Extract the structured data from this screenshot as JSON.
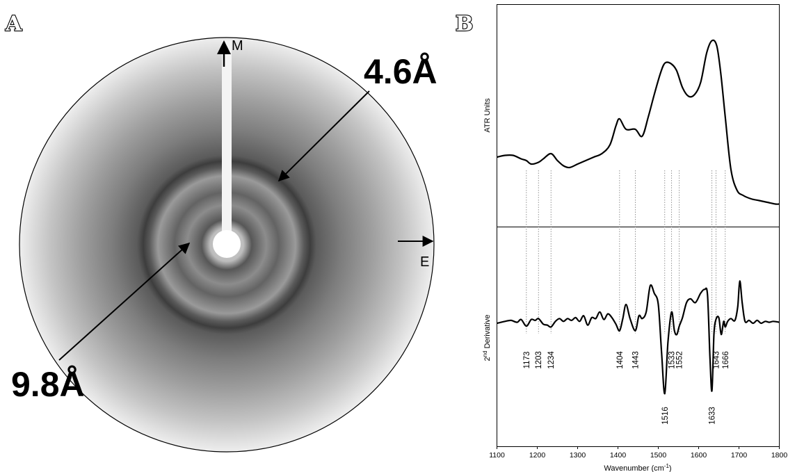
{
  "panel_a": {
    "letter": "A",
    "labels": {
      "top_right": "4.6Å",
      "bottom_left": "9.8Å",
      "meridian": "M",
      "equator": "E"
    }
  },
  "panel_b": {
    "letter": "B",
    "top_ylabel": "ATR Units",
    "bottom_ylabel_main": "2",
    "bottom_ylabel_sup": "nd",
    "bottom_ylabel_rest": " Derivative",
    "xlabel_main": "Wavenumber (cm",
    "xlabel_sup": "-1",
    "xlabel_end": ")"
  },
  "chart_data": {
    "type": "line",
    "xlabel": "Wavenumber (cm-1)",
    "xlim": [
      1100,
      1800
    ],
    "x_ticks": [
      "1100",
      "1200",
      "1300",
      "1400",
      "1500",
      "1600",
      "1700",
      "1800"
    ],
    "peak_markers": [
      "1173",
      "1203",
      "1234",
      "1404",
      "1443",
      "1516",
      "1533",
      "1552",
      "1633",
      "1643",
      "1666"
    ],
    "series": [
      {
        "name": "ATR Units",
        "x": [
          1100,
          1120,
          1140,
          1160,
          1173,
          1185,
          1203,
          1215,
          1234,
          1250,
          1265,
          1280,
          1300,
          1320,
          1340,
          1360,
          1380,
          1395,
          1404,
          1420,
          1443,
          1460,
          1475,
          1490,
          1505,
          1516,
          1530,
          1545,
          1560,
          1575,
          1590,
          1605,
          1620,
          1633,
          1645,
          1655,
          1666,
          1680,
          1695,
          1710,
          1730,
          1750,
          1770,
          1790,
          1800
        ],
        "y": [
          0.32,
          0.33,
          0.33,
          0.31,
          0.3,
          0.28,
          0.29,
          0.31,
          0.34,
          0.3,
          0.27,
          0.26,
          0.28,
          0.3,
          0.32,
          0.34,
          0.39,
          0.5,
          0.54,
          0.48,
          0.48,
          0.44,
          0.55,
          0.68,
          0.8,
          0.86,
          0.86,
          0.82,
          0.72,
          0.67,
          0.68,
          0.75,
          0.92,
          0.99,
          0.96,
          0.8,
          0.55,
          0.25,
          0.13,
          0.1,
          0.08,
          0.07,
          0.06,
          0.05,
          0.05
        ]
      },
      {
        "name": "2nd Derivative",
        "x": [
          1100,
          1120,
          1135,
          1150,
          1160,
          1173,
          1185,
          1195,
          1203,
          1215,
          1225,
          1234,
          1245,
          1255,
          1265,
          1275,
          1285,
          1295,
          1305,
          1315,
          1325,
          1335,
          1345,
          1355,
          1365,
          1375,
          1385,
          1395,
          1404,
          1412,
          1420,
          1430,
          1443,
          1452,
          1460,
          1470,
          1480,
          1490,
          1500,
          1508,
          1516,
          1524,
          1533,
          1540,
          1546,
          1552,
          1560,
          1570,
          1580,
          1592,
          1605,
          1615,
          1622,
          1628,
          1633,
          1638,
          1643,
          1650,
          1656,
          1662,
          1666,
          1672,
          1680,
          1690,
          1697,
          1702,
          1708,
          1715,
          1725,
          1735,
          1745,
          1755,
          1765,
          1775,
          1785,
          1800
        ],
        "y": [
          0.0,
          0.02,
          0.03,
          0.01,
          0.04,
          -0.03,
          0.04,
          0.03,
          0.05,
          -0.01,
          -0.02,
          -0.04,
          0.02,
          0.05,
          0.02,
          0.05,
          0.03,
          0.06,
          0.02,
          0.08,
          -0.02,
          0.06,
          0.05,
          0.12,
          0.04,
          0.1,
          0.06,
          -0.01,
          -0.08,
          0.05,
          0.2,
          0.05,
          -0.08,
          0.08,
          0.05,
          0.12,
          0.4,
          0.32,
          0.2,
          -0.3,
          -0.75,
          -0.2,
          0.12,
          -0.08,
          -0.12,
          -0.03,
          0.06,
          0.22,
          0.26,
          0.22,
          0.32,
          0.36,
          0.3,
          -0.35,
          -0.72,
          -0.12,
          0.04,
          0.06,
          -0.12,
          0.02,
          -0.04,
          0.02,
          0.05,
          0.03,
          0.18,
          0.45,
          0.22,
          0.02,
          0.03,
          0.0,
          0.03,
          0.0,
          0.02,
          0.01,
          0.02,
          0.01
        ]
      }
    ]
  }
}
